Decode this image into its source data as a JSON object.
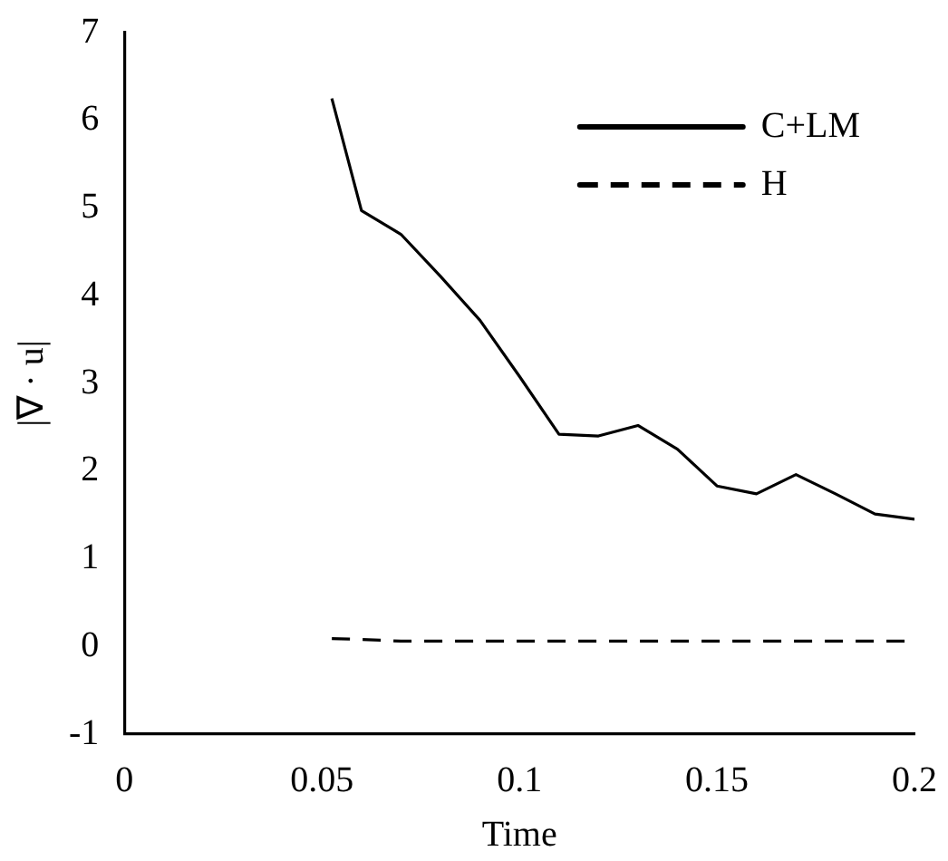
{
  "chart_data": {
    "type": "line",
    "xlabel": "Time",
    "ylabel": "|∇ · u|",
    "xlim": [
      0,
      0.2
    ],
    "xticks": [
      0,
      0.05,
      0.1,
      0.15,
      0.2
    ],
    "ylim": [
      -1,
      7
    ],
    "yticks": [
      -1,
      0,
      1,
      2,
      3,
      4,
      5,
      6,
      7
    ],
    "grid": false,
    "legend": "top right",
    "series": [
      {
        "name": "C+LM",
        "color": "#000000",
        "line_style": "solid",
        "x": [
          0.0525,
          0.06,
          0.07,
          0.08,
          0.09,
          0.1,
          0.11,
          0.12,
          0.13,
          0.14,
          0.15,
          0.16,
          0.17,
          0.18,
          0.19,
          0.2
        ],
        "values": [
          6.25,
          4.97,
          4.7,
          4.22,
          3.72,
          3.08,
          2.42,
          2.4,
          2.52,
          2.25,
          1.83,
          1.74,
          1.96,
          1.74,
          1.51,
          1.45
        ]
      },
      {
        "name": "H",
        "color": "#000000",
        "line_style": "dashed",
        "x": [
          0.0525,
          0.06,
          0.07,
          0.08,
          0.09,
          0.1,
          0.11,
          0.12,
          0.13,
          0.14,
          0.15,
          0.16,
          0.17,
          0.18,
          0.19,
          0.2
        ],
        "values": [
          0.09,
          0.08,
          0.06,
          0.06,
          0.06,
          0.06,
          0.06,
          0.06,
          0.06,
          0.06,
          0.06,
          0.06,
          0.06,
          0.06,
          0.06,
          0.06
        ]
      }
    ]
  }
}
